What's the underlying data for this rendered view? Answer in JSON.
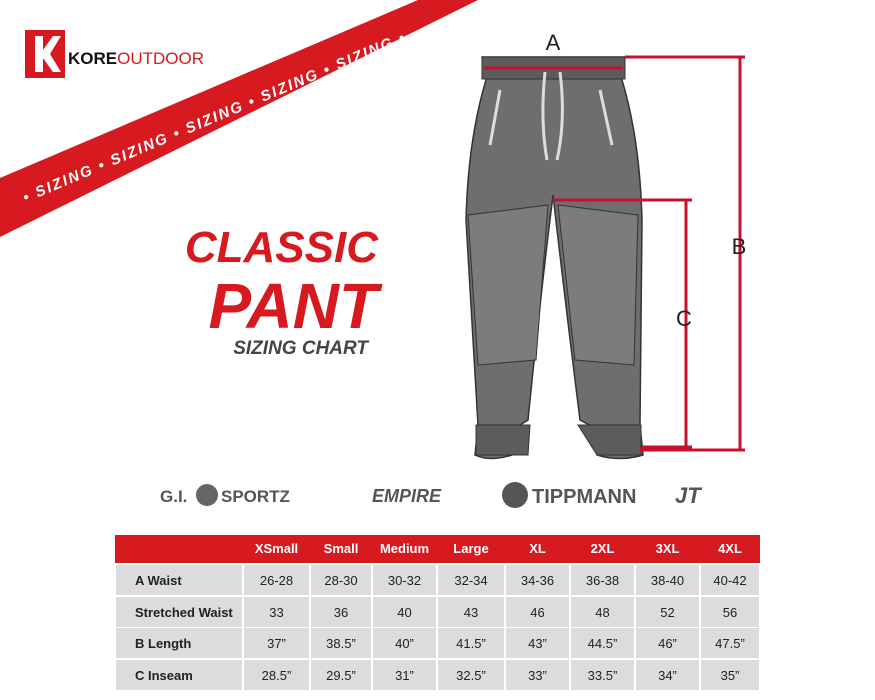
{
  "header": {
    "logo_brand": "KORE",
    "logo_suffix": "OUTDOOR",
    "banner": "• SIZING • SIZING • SIZING • SIZING • SIZING •"
  },
  "title": {
    "line1": "CLASSIC",
    "line2": "PANT",
    "subtitle": "SIZING CHART"
  },
  "diagram": {
    "labels": [
      "A",
      "B",
      "C"
    ]
  },
  "brands": [
    "G.I.",
    "SPORTZ",
    "EMPIRE",
    "TIPPMANN",
    "JT"
  ],
  "table": {
    "columns": [
      "XSmall",
      "Small",
      "Medium",
      "Large",
      "XL",
      "2XL",
      "3XL",
      "4XL"
    ],
    "rows": [
      [
        "A Waist",
        "26-28",
        "28-30",
        "30-32",
        "32-34",
        "34-36",
        "36-38",
        "38-40",
        "40-42"
      ],
      [
        "Stretched Waist",
        "33",
        "36",
        "40",
        "43",
        "46",
        "48",
        "52",
        "56"
      ],
      [
        "B Length",
        "37”",
        "38.5”",
        "40”",
        "41.5”",
        "43”",
        "44.5”",
        "46”",
        "47.5”"
      ],
      [
        "C Inseam",
        "28.5”",
        "29.5”",
        "31”",
        "32.5”",
        "33”",
        "33.5”",
        "34”",
        "35”"
      ]
    ]
  }
}
